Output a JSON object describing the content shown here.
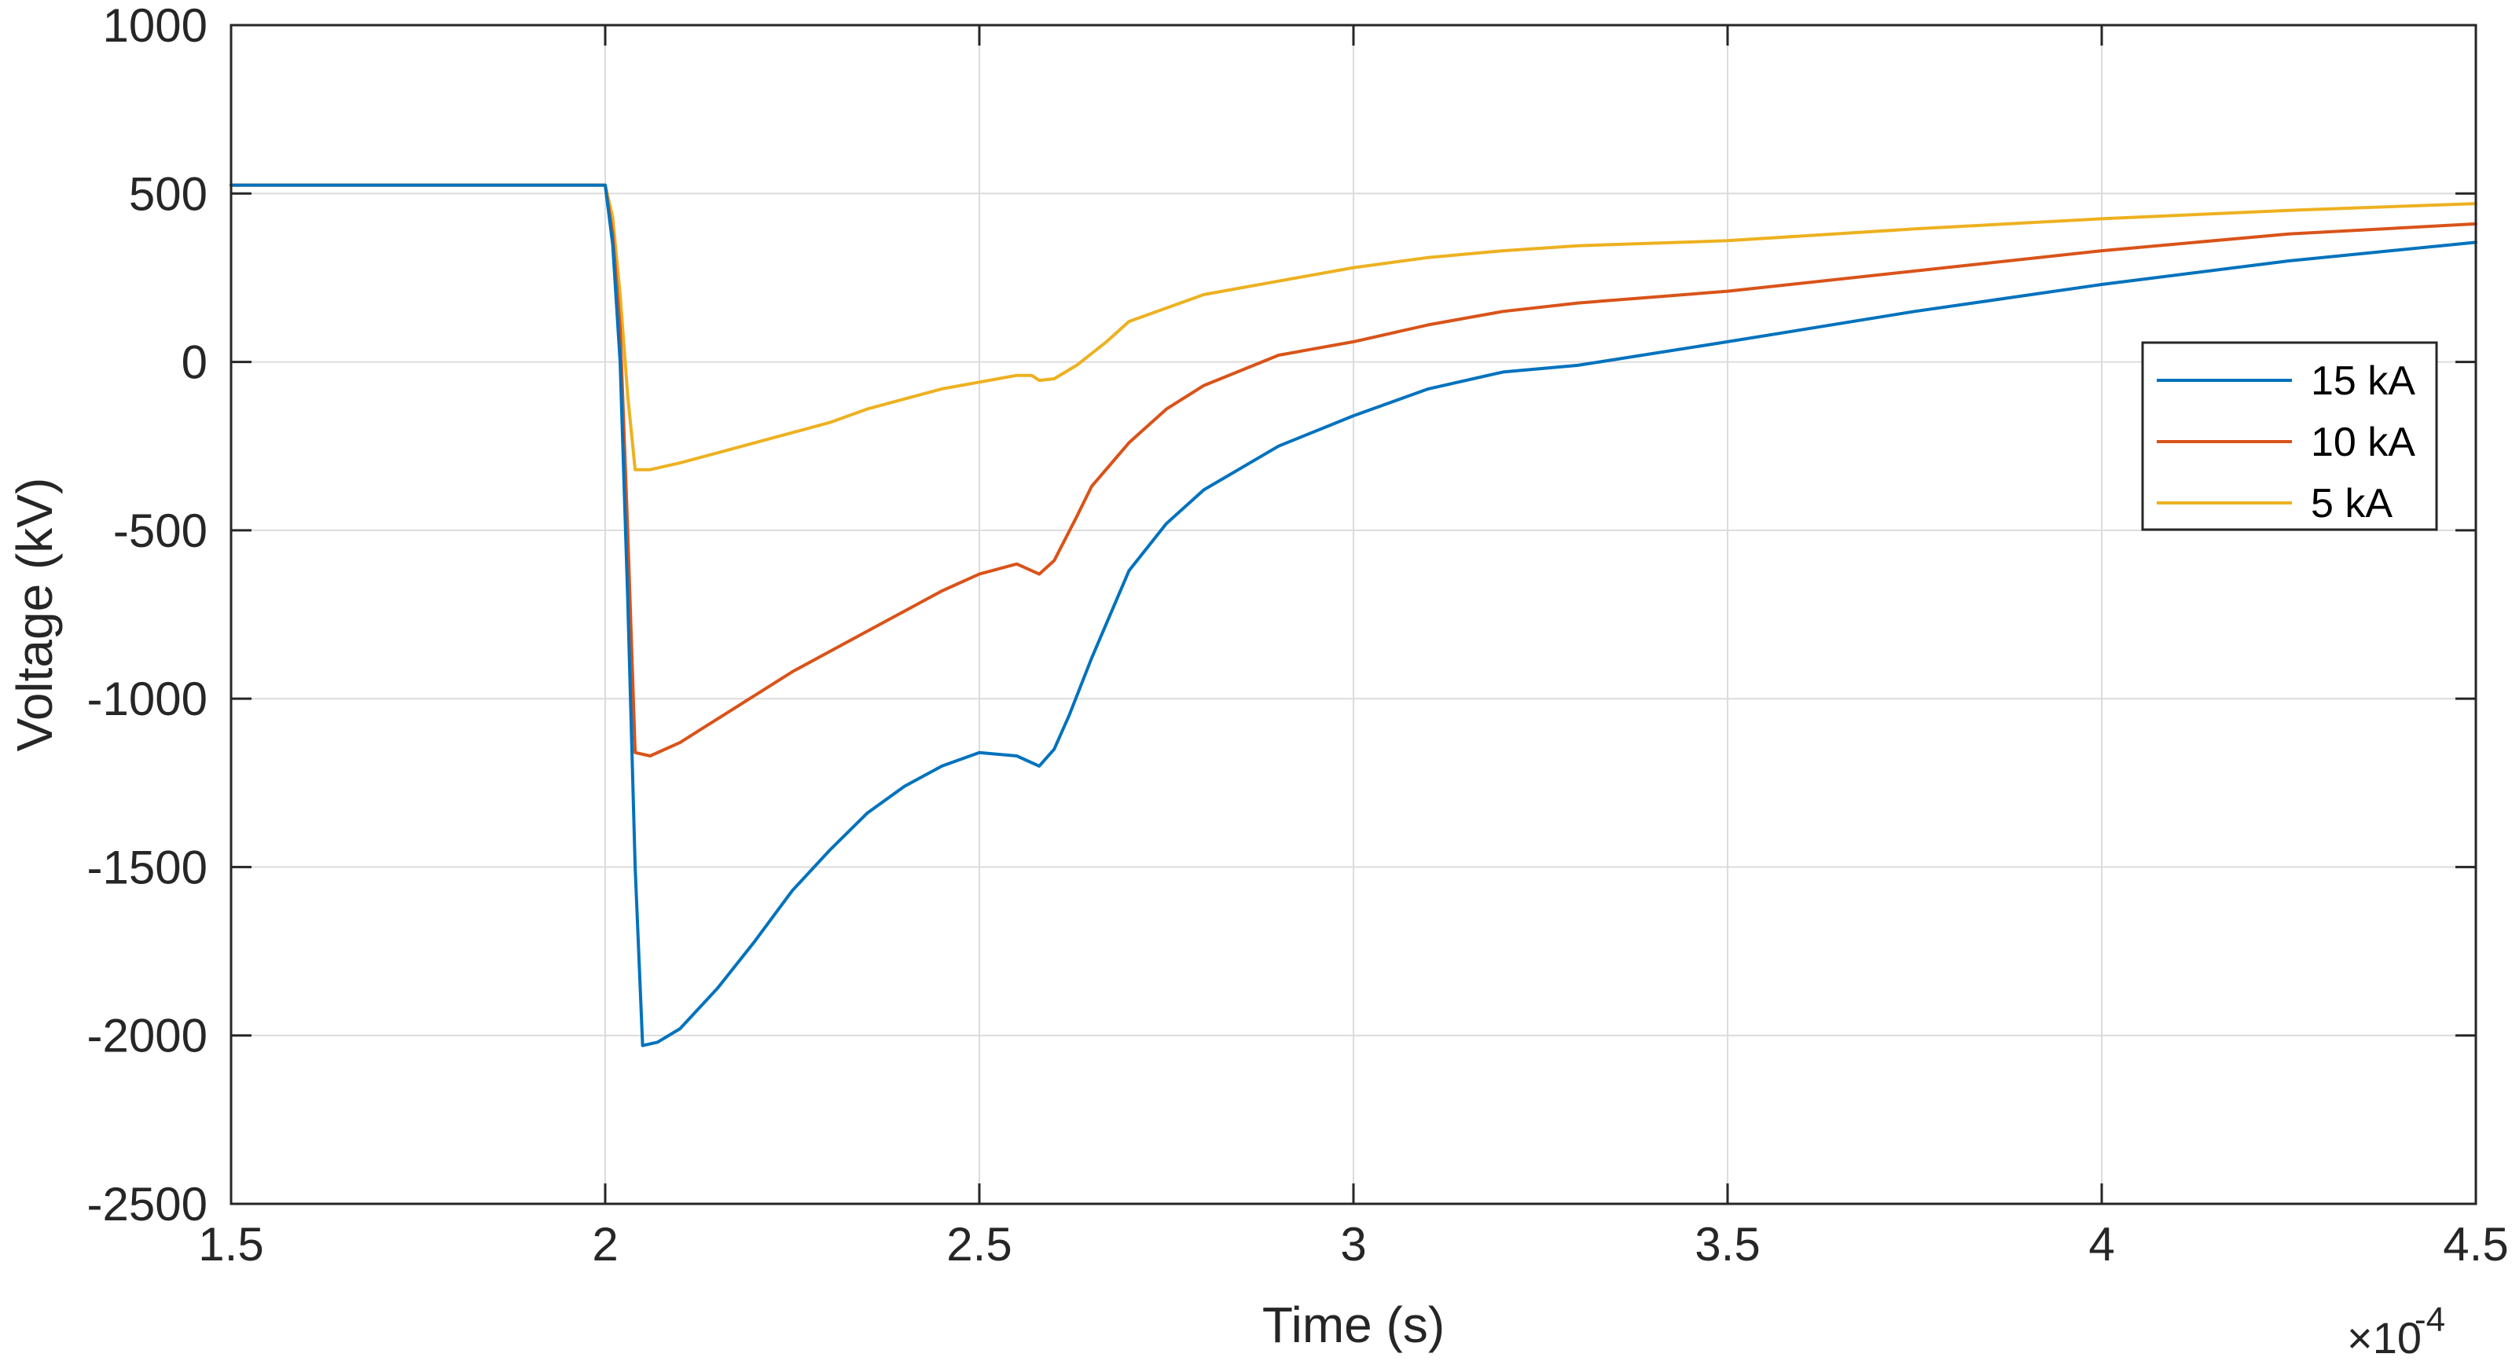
{
  "chart_data": {
    "type": "line",
    "title": "",
    "xlabel": "Time (s)",
    "ylabel": "Voltage (kV)",
    "x_multiplier_label": "×10",
    "x_multiplier_exponent": "-4",
    "x_scale": 0.0001,
    "xlim": [
      1.5,
      4.5
    ],
    "ylim": [
      -2500,
      1000
    ],
    "x_ticks": [
      1.5,
      2,
      2.5,
      3,
      3.5,
      4,
      4.5
    ],
    "x_tick_labels": [
      "1.5",
      "2",
      "2.5",
      "3",
      "3.5",
      "4",
      "4.5"
    ],
    "y_ticks": [
      -2500,
      -2000,
      -1500,
      -1000,
      -500,
      0,
      500,
      1000
    ],
    "y_tick_labels": [
      "-2500",
      "-2000",
      "-1500",
      "-1000",
      "-500",
      "0",
      "500",
      "1000"
    ],
    "grid": true,
    "legend_position": "right",
    "series": [
      {
        "name": "15 kA",
        "color": "#0072BD",
        "x": [
          1.5,
          2.0,
          2.01,
          2.02,
          2.03,
          2.04,
          2.05,
          2.07,
          2.1,
          2.15,
          2.2,
          2.25,
          2.3,
          2.35,
          2.4,
          2.45,
          2.5,
          2.55,
          2.58,
          2.6,
          2.62,
          2.65,
          2.7,
          2.75,
          2.8,
          2.9,
          3.0,
          3.1,
          3.2,
          3.3,
          3.5,
          3.75,
          4.0,
          4.25,
          4.5
        ],
        "y": [
          525,
          525,
          350,
          0,
          -700,
          -1500,
          -2030,
          -2020,
          -1980,
          -1860,
          -1720,
          -1570,
          -1450,
          -1340,
          -1260,
          -1200,
          -1160,
          -1170,
          -1200,
          -1150,
          -1050,
          -880,
          -620,
          -480,
          -380,
          -250,
          -160,
          -80,
          -30,
          -10,
          60,
          150,
          230,
          300,
          355
        ]
      },
      {
        "name": "10 kA",
        "color": "#D95319",
        "x": [
          1.5,
          2.0,
          2.01,
          2.02,
          2.03,
          2.04,
          2.06,
          2.1,
          2.15,
          2.2,
          2.25,
          2.3,
          2.35,
          2.4,
          2.45,
          2.5,
          2.55,
          2.58,
          2.6,
          2.63,
          2.65,
          2.7,
          2.75,
          2.8,
          2.9,
          3.0,
          3.1,
          3.2,
          3.3,
          3.5,
          3.75,
          4.0,
          4.25,
          4.5
        ],
        "y": [
          525,
          525,
          380,
          100,
          -500,
          -1160,
          -1170,
          -1130,
          -1060,
          -990,
          -920,
          -860,
          -800,
          -740,
          -680,
          -630,
          -600,
          -630,
          -590,
          -460,
          -370,
          -240,
          -140,
          -70,
          20,
          60,
          110,
          150,
          175,
          210,
          270,
          330,
          380,
          410
        ]
      },
      {
        "name": "5 kA",
        "color": "#EDB120",
        "x": [
          1.5,
          2.0,
          2.01,
          2.02,
          2.03,
          2.04,
          2.06,
          2.1,
          2.15,
          2.2,
          2.25,
          2.3,
          2.35,
          2.4,
          2.45,
          2.5,
          2.55,
          2.57,
          2.58,
          2.6,
          2.63,
          2.67,
          2.7,
          2.75,
          2.8,
          2.9,
          3.0,
          3.1,
          3.2,
          3.3,
          3.5,
          3.75,
          4.0,
          4.25,
          4.5
        ],
        "y": [
          525,
          525,
          430,
          200,
          -100,
          -320,
          -320,
          -300,
          -270,
          -240,
          -210,
          -180,
          -140,
          -110,
          -80,
          -60,
          -40,
          -40,
          -55,
          -50,
          -10,
          60,
          120,
          160,
          200,
          240,
          280,
          310,
          330,
          345,
          360,
          395,
          425,
          450,
          470
        ]
      }
    ]
  }
}
